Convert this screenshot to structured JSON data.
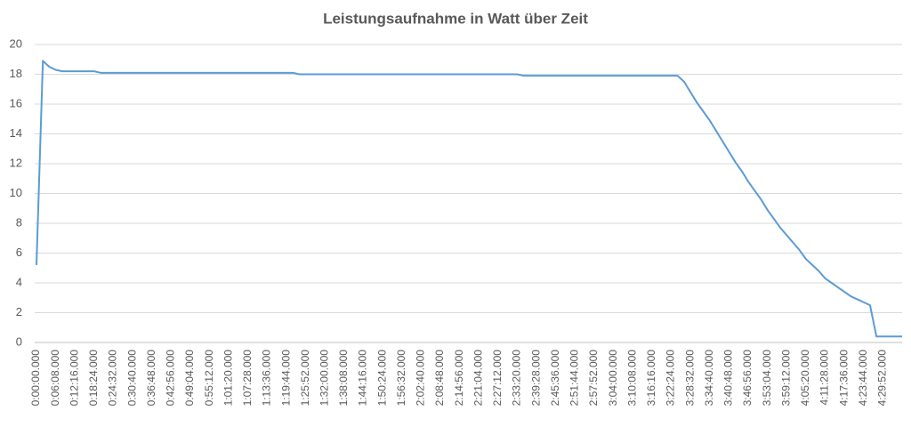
{
  "chart_data": {
    "type": "line",
    "title": "Leistungsaufnahme in Watt über Zeit",
    "categories": [
      "0:00:00.000",
      null,
      null,
      "0:06:08.000",
      null,
      null,
      "0:12:16.000",
      null,
      null,
      "0:18:24.000",
      null,
      null,
      "0:24:32.000",
      null,
      null,
      "0:30:40.000",
      null,
      null,
      "0:36:48.000",
      null,
      null,
      "0:42:56.000",
      null,
      null,
      "0:49:04.000",
      null,
      null,
      "0:55:12.000",
      null,
      null,
      "1:01:20.000",
      null,
      null,
      "1:07:28.000",
      null,
      null,
      "1:13:36.000",
      null,
      null,
      "1:19:44.000",
      null,
      null,
      "1:25:52.000",
      null,
      null,
      "1:32:00.000",
      null,
      null,
      "1:38:08.000",
      null,
      null,
      "1:44:16.000",
      null,
      null,
      "1:50:24.000",
      null,
      null,
      "1:56:32.000",
      null,
      null,
      "2:02:40.000",
      null,
      null,
      "2:08:48.000",
      null,
      null,
      "2:14:56.000",
      null,
      null,
      "2:21:04.000",
      null,
      null,
      "2:27:12.000",
      null,
      null,
      "2:33:20.000",
      null,
      null,
      "2:39:28.000",
      null,
      null,
      "2:45:36.000",
      null,
      null,
      "2:51:44.000",
      null,
      null,
      "2:57:52.000",
      null,
      null,
      "3:04:00.000",
      null,
      null,
      "3:10:08.000",
      null,
      null,
      "3:16:16.000",
      null,
      null,
      "3:22:24.000",
      null,
      null,
      "3:28:32.000",
      null,
      null,
      "3:34:40.000",
      null,
      null,
      "3:40:48.000",
      null,
      null,
      "3:46:56.000",
      null,
      null,
      "3:53:04.000",
      null,
      null,
      "3:59:12.000",
      null,
      null,
      "4:05:20.000",
      null,
      null,
      "4:11:28.000",
      null,
      null,
      "4:17:36.000",
      null,
      null,
      "4:23:44.000",
      null,
      null,
      "4:29:52.000",
      null,
      null,
      null
    ],
    "series": [
      {
        "name": "Leistungsaufnahme",
        "color": "#5b9bd5",
        "values": [
          5.2,
          18.9,
          18.5,
          18.3,
          18.2,
          18.2,
          18.2,
          18.2,
          18.2,
          18.2,
          18.1,
          18.1,
          18.1,
          18.1,
          18.1,
          18.1,
          18.1,
          18.1,
          18.1,
          18.1,
          18.1,
          18.1,
          18.1,
          18.1,
          18.1,
          18.1,
          18.1,
          18.1,
          18.1,
          18.1,
          18.1,
          18.1,
          18.1,
          18.1,
          18.1,
          18.1,
          18.1,
          18.1,
          18.1,
          18.1,
          18.1,
          18,
          18,
          18,
          18,
          18,
          18,
          18,
          18,
          18,
          18,
          18,
          18,
          18,
          18,
          18,
          18,
          18,
          18,
          18,
          18,
          18,
          18,
          18,
          18,
          18,
          18,
          18,
          18,
          18,
          18,
          18,
          18,
          18,
          18,
          18,
          17.9,
          17.9,
          17.9,
          17.9,
          17.9,
          17.9,
          17.9,
          17.9,
          17.9,
          17.9,
          17.9,
          17.9,
          17.9,
          17.9,
          17.9,
          17.9,
          17.9,
          17.9,
          17.9,
          17.9,
          17.9,
          17.9,
          17.9,
          17.9,
          17.9,
          17.5,
          16.8,
          16.1,
          15.5,
          14.9,
          14.2,
          13.5,
          12.8,
          12.1,
          11.5,
          10.8,
          10.2,
          9.6,
          8.9,
          8.3,
          7.7,
          7.2,
          6.7,
          6.2,
          5.6,
          5.2,
          4.8,
          4.3,
          4.0,
          3.7,
          3.4,
          3.1,
          2.9,
          2.7,
          2.5,
          0.4,
          0.4,
          0.4,
          0.4,
          0.4
        ]
      }
    ],
    "ylim": [
      0,
      20
    ],
    "yticks": [
      0,
      2,
      4,
      6,
      8,
      10,
      12,
      14,
      16,
      18,
      20
    ],
    "grid": true
  }
}
